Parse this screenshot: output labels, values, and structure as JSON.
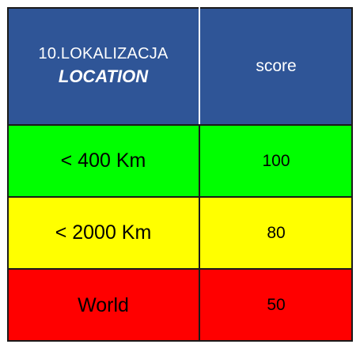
{
  "header": {
    "col1_line1": "10.LOKALIZACJA",
    "col1_line2": "LOCATION",
    "col2": "score",
    "color": "#2f5597"
  },
  "rows": [
    {
      "label": "< 400 Km",
      "score": "100",
      "color": "#00ff00"
    },
    {
      "label": "< 2000 Km",
      "score": "80",
      "color": "#ffff00"
    },
    {
      "label": "World",
      "score": "50",
      "color": "#ff0000"
    }
  ]
}
